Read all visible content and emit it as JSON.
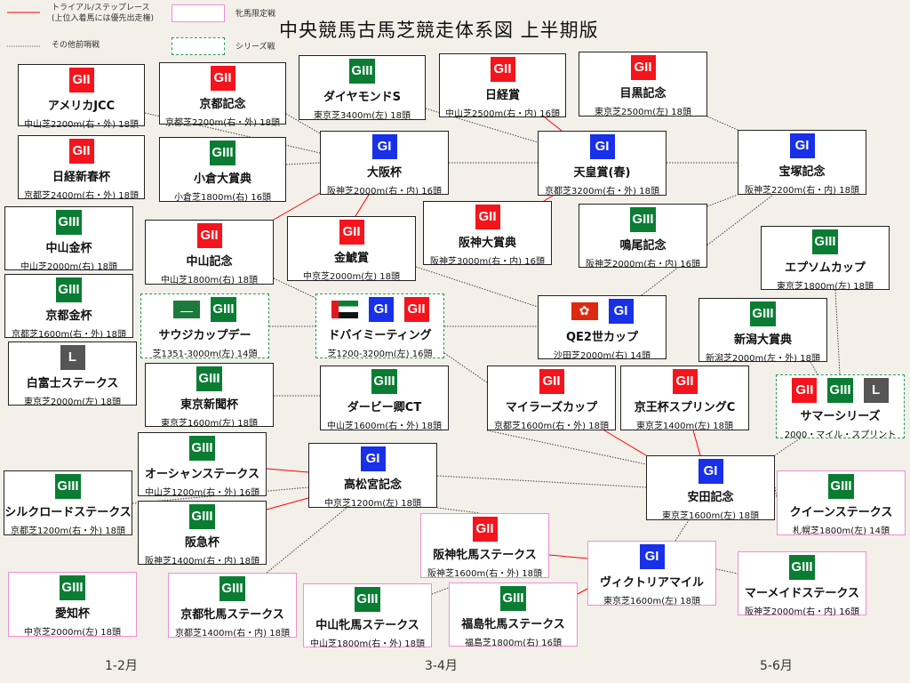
{
  "title": "中央競馬古馬芝競走体系図  上半期版",
  "legend": {
    "trial_line": "トライアル/ステップレース",
    "trial_note": "(上位入着馬には優先出走権)",
    "other_line": "その他前哨戦",
    "filly_box": "牝馬限定戦",
    "series_box": "シリーズ戦",
    "trial_color": "#ff0000",
    "filly_color": "#f08fcf",
    "series_color": "#2a9a55"
  },
  "periods": [
    "1-2月",
    "3-4月",
    "5-6月"
  ],
  "grade_colors": {
    "GI": "#1830e8",
    "GII": "#f5141c",
    "GIII": "#0a7d33",
    "L": "#555555"
  },
  "races": [
    {
      "name": "アメリカJCC",
      "badges": [
        "GII"
      ],
      "course": "中山芝2200m(右・外) 18頭",
      "type": "normal"
    },
    {
      "name": "京都記念",
      "badges": [
        "GII"
      ],
      "course": "京都芝2200m(右・外) 18頭",
      "type": "normal"
    },
    {
      "name": "ダイヤモンドS",
      "badges": [
        "GIII"
      ],
      "course": "東京芝3400m(左) 18頭",
      "type": "normal"
    },
    {
      "name": "日経賞",
      "badges": [
        "GII"
      ],
      "course": "中山芝2500m(右・内) 16頭",
      "type": "normal"
    },
    {
      "name": "目黒記念",
      "badges": [
        "GII"
      ],
      "course": "東京芝2500m(左) 18頭",
      "type": "normal"
    },
    {
      "name": "日経新春杯",
      "badges": [
        "GII"
      ],
      "course": "京都芝2400m(右・外) 18頭",
      "type": "normal"
    },
    {
      "name": "小倉大賞典",
      "badges": [
        "GIII"
      ],
      "course": "小倉芝1800m(右) 16頭",
      "type": "normal"
    },
    {
      "name": "大阪杯",
      "badges": [
        "GI"
      ],
      "course": "阪神芝2000m(右・内) 16頭",
      "type": "normal"
    },
    {
      "name": "天皇賞(春)",
      "badges": [
        "GI"
      ],
      "course": "京都芝3200m(右・外) 18頭",
      "type": "normal"
    },
    {
      "name": "宝塚記念",
      "badges": [
        "GI"
      ],
      "course": "阪神芝2200m(右・内) 18頭",
      "type": "normal"
    },
    {
      "name": "中山金杯",
      "badges": [
        "GIII"
      ],
      "course": "中山芝2000m(右) 18頭",
      "type": "normal"
    },
    {
      "name": "中山記念",
      "badges": [
        "GII"
      ],
      "course": "中山芝1800m(右) 18頭",
      "type": "normal"
    },
    {
      "name": "金鯱賞",
      "badges": [
        "GII"
      ],
      "course": "中京芝2000m(左) 18頭",
      "type": "normal"
    },
    {
      "name": "阪神大賞典",
      "badges": [
        "GII"
      ],
      "course": "阪神芝3000m(右・内) 16頭",
      "type": "normal"
    },
    {
      "name": "鳴尾記念",
      "badges": [
        "GIII"
      ],
      "course": "阪神芝2000m(右・内) 16頭",
      "type": "normal"
    },
    {
      "name": "エプソムカップ",
      "badges": [
        "GIII"
      ],
      "course": "東京芝1800m(左) 18頭",
      "type": "normal"
    },
    {
      "name": "京都金杯",
      "badges": [
        "GIII"
      ],
      "course": "京都芝1600m(右・外) 18頭",
      "type": "normal"
    },
    {
      "name": "サウジカップデー",
      "flags": [
        "saudi-arabia-flag"
      ],
      "badges": [
        "GIII"
      ],
      "course": "芝1351-3000m(左) 14頭",
      "type": "series"
    },
    {
      "name": "ドバイミーティング",
      "flags": [
        "uae-flag"
      ],
      "badges": [
        "GI",
        "GII"
      ],
      "course": "芝1200-3200m(左) 16頭",
      "type": "series"
    },
    {
      "name": "QE2世カップ",
      "flags": [
        "hong-kong-flag"
      ],
      "badges": [
        "GI"
      ],
      "course": "沙田芝2000m(右) 14頭",
      "type": "normal"
    },
    {
      "name": "新潟大賞典",
      "badges": [
        "GIII"
      ],
      "course": "新潟芝2000m(左・外) 18頭",
      "type": "normal"
    },
    {
      "name": "白富士ステークス",
      "badges": [
        "L"
      ],
      "course": "東京芝2000m(左) 18頭",
      "type": "normal"
    },
    {
      "name": "東京新聞杯",
      "badges": [
        "GIII"
      ],
      "course": "東京芝1600m(左) 18頭",
      "type": "normal"
    },
    {
      "name": "ダービー卿CT",
      "badges": [
        "GIII"
      ],
      "course": "中山芝1600m(右・外) 18頭",
      "type": "normal"
    },
    {
      "name": "マイラーズカップ",
      "badges": [
        "GII"
      ],
      "course": "京都芝1600m(右・外) 18頭",
      "type": "normal"
    },
    {
      "name": "京王杯スプリングC",
      "badges": [
        "GII"
      ],
      "course": "東京芝1400m(左) 18頭",
      "type": "normal"
    },
    {
      "name": "サマーシリーズ",
      "badges": [
        "GII",
        "GIII",
        "L"
      ],
      "course": "2000・マイル・スプリント",
      "type": "series"
    },
    {
      "name": "オーシャンステークス",
      "badges": [
        "GIII"
      ],
      "course": "中山芝1200m(右・外) 16頭",
      "type": "normal"
    },
    {
      "name": "高松宮記念",
      "badges": [
        "GI"
      ],
      "course": "中京芝1200m(左) 18頭",
      "type": "normal"
    },
    {
      "name": "安田記念",
      "badges": [
        "GI"
      ],
      "course": "東京芝1600m(左) 18頭",
      "type": "normal"
    },
    {
      "name": "シルクロードステークス",
      "badges": [
        "GIII"
      ],
      "course": "京都芝1200m(右・外) 18頭",
      "type": "normal"
    },
    {
      "name": "クイーンステークス",
      "badges": [
        "GIII"
      ],
      "course": "札幌芝1800m(左) 14頭",
      "type": "filly"
    },
    {
      "name": "阪急杯",
      "badges": [
        "GIII"
      ],
      "course": "阪神芝1400m(右・内) 18頭",
      "type": "normal"
    },
    {
      "name": "阪神牝馬ステークス",
      "badges": [
        "GII"
      ],
      "course": "阪神芝1600m(右・外) 18頭",
      "type": "filly"
    },
    {
      "name": "ヴィクトリアマイル",
      "badges": [
        "GI"
      ],
      "course": "東京芝1600m(左) 18頭",
      "type": "filly"
    },
    {
      "name": "マーメイドステークス",
      "badges": [
        "GIII"
      ],
      "course": "阪神芝2000m(右・内) 16頭",
      "type": "filly"
    },
    {
      "name": "愛知杯",
      "badges": [
        "GIII"
      ],
      "course": "中京芝2000m(左) 18頭",
      "type": "filly"
    },
    {
      "name": "京都牝馬ステークス",
      "badges": [
        "GIII"
      ],
      "course": "京都芝1400m(右・内) 18頭",
      "type": "filly"
    },
    {
      "name": "中山牝馬ステークス",
      "badges": [
        "GIII"
      ],
      "course": "中山芝1800m(右・外) 18頭",
      "type": "filly"
    },
    {
      "name": "福島牝馬ステークス",
      "badges": [
        "GIII"
      ],
      "course": "福島芝1800m(右) 16頭",
      "type": "filly"
    }
  ]
}
